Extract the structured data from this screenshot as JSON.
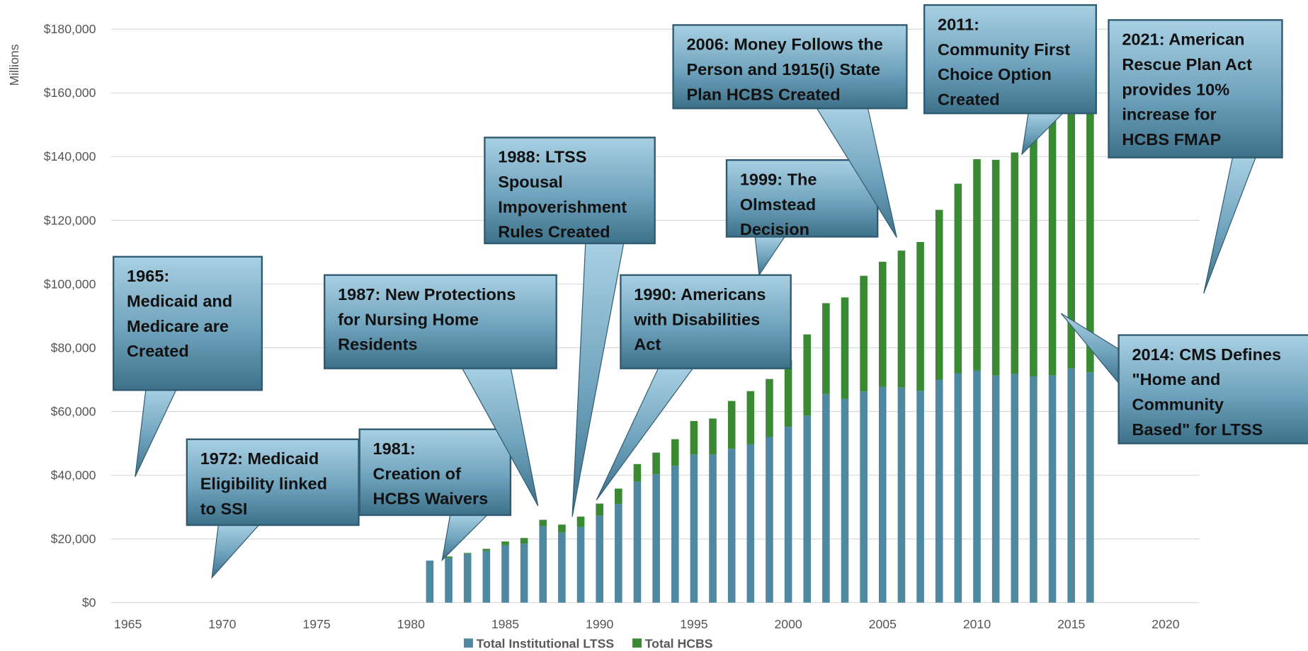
{
  "chart_data": {
    "type": "bar",
    "stacked": true,
    "y_label": "Millions",
    "x": [
      1981,
      1982,
      1983,
      1984,
      1985,
      1986,
      1987,
      1988,
      1989,
      1990,
      1991,
      1992,
      1993,
      1994,
      1995,
      1996,
      1997,
      1998,
      1999,
      2000,
      2001,
      2002,
      2003,
      2004,
      2005,
      2006,
      2007,
      2008,
      2009,
      2010,
      2011,
      2012,
      2013,
      2014,
      2015,
      2016
    ],
    "series": [
      {
        "name": "Total Institutional LTSS",
        "color": "#4f88a1",
        "values": [
          13200,
          14000,
          15300,
          16200,
          18000,
          18500,
          24000,
          22000,
          23800,
          27300,
          31000,
          38000,
          40300,
          43000,
          46500,
          46500,
          48300,
          49700,
          52000,
          55200,
          58700,
          65500,
          64000,
          66300,
          67700,
          67500,
          66500,
          70000,
          72000,
          72800,
          71300,
          71800,
          71000,
          71300,
          73500,
          72300
        ]
      },
      {
        "name": "Total HCBS",
        "color": "#3a8a34",
        "values": [
          0,
          500,
          300,
          700,
          1200,
          1800,
          2000,
          2500,
          3200,
          3800,
          4800,
          5500,
          6800,
          8300,
          10500,
          11300,
          15000,
          16700,
          18200,
          20800,
          25500,
          28500,
          31800,
          36300,
          39300,
          43000,
          46700,
          53300,
          59500,
          66400,
          67700,
          69500,
          77000,
          82000,
          87000,
          94000
        ]
      }
    ],
    "xlim": [
      1964.1,
      2021.8
    ],
    "xticks": [
      1965,
      1970,
      1975,
      1980,
      1985,
      1990,
      1995,
      2000,
      2005,
      2010,
      2015,
      2020
    ],
    "ylim": [
      0,
      180000
    ],
    "yticks": [
      {
        "value": 0,
        "label": "$0"
      },
      {
        "value": 20000,
        "label": "$20,000"
      },
      {
        "value": 40000,
        "label": "$40,000"
      },
      {
        "value": 60000,
        "label": "$60,000"
      },
      {
        "value": 80000,
        "label": "$80,000"
      },
      {
        "value": 100000,
        "label": "$100,000"
      },
      {
        "value": 120000,
        "label": "$120,000"
      },
      {
        "value": 140000,
        "label": "$140,000"
      },
      {
        "value": 160000,
        "label": "$160,000"
      },
      {
        "value": 180000,
        "label": "$180,000"
      }
    ],
    "grid": true,
    "legend": "bottom",
    "annotations": [
      {
        "lines": [
          "1965:",
          "Medicaid and",
          "Medicare are",
          "Created"
        ]
      },
      {
        "lines": [
          "1972: Medicaid",
          "Eligibility linked",
          "to SSI"
        ]
      },
      {
        "lines": [
          "1981:",
          "Creation of",
          "HCBS Waivers"
        ]
      },
      {
        "lines": [
          "1987: New Protections",
          "for Nursing Home",
          "Residents"
        ]
      },
      {
        "lines": [
          "1988: LTSS",
          "Spousal",
          "Impoverishment",
          "Rules Created"
        ]
      },
      {
        "lines": [
          "1990: Americans",
          "with Disabilities",
          "Act"
        ]
      },
      {
        "lines": [
          "1999: The",
          "Olmstead",
          "Decision"
        ]
      },
      {
        "lines": [
          "2006: Money Follows the",
          "Person and 1915(i) State",
          "Plan HCBS Created"
        ]
      },
      {
        "lines": [
          "2011:",
          "Community First",
          "Choice Option",
          "Created"
        ]
      },
      {
        "lines": [
          "2014: CMS Defines",
          "\"Home and",
          "Community",
          "Based\" for LTSS"
        ]
      },
      {
        "lines": [
          "2021: American",
          "Rescue Plan Act",
          "provides 10%",
          "increase for",
          "HCBS FMAP"
        ]
      }
    ]
  }
}
